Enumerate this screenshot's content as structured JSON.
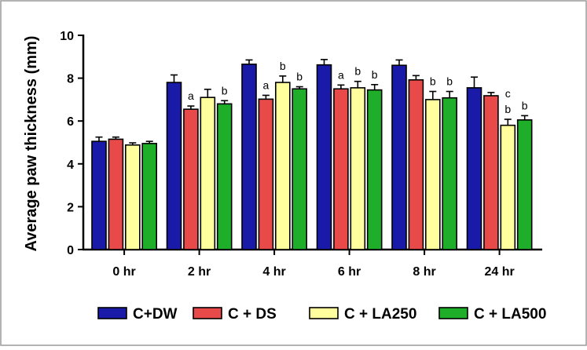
{
  "chart_data": {
    "type": "bar",
    "title": "",
    "xlabel": "",
    "ylabel": "Average paw thickness (mm)",
    "ylim": [
      0,
      10
    ],
    "yticks": [
      0,
      2,
      4,
      6,
      8,
      10
    ],
    "grid": false,
    "legend_position": "bottom",
    "categories": [
      "0 hr",
      "2 hr",
      "4 hr",
      "6 hr",
      "8 hr",
      "24 hr"
    ],
    "series": [
      {
        "name": "C+DW",
        "color": "#1a1aa8",
        "values": [
          5.05,
          7.8,
          8.65,
          8.62,
          8.6,
          7.55
        ],
        "errors": [
          0.2,
          0.35,
          0.2,
          0.25,
          0.25,
          0.5
        ],
        "labels": [
          "",
          "",
          "",
          "",
          "",
          ""
        ]
      },
      {
        "name": "C + DS",
        "color": "#e84a4a",
        "values": [
          5.15,
          6.55,
          7.02,
          7.5,
          7.92,
          7.18
        ],
        "errors": [
          0.1,
          0.15,
          0.18,
          0.18,
          0.2,
          0.15
        ],
        "labels": [
          "",
          "a",
          "a",
          "a",
          "",
          ""
        ]
      },
      {
        "name": "C + LA250",
        "color": "#ffff9e",
        "values": [
          4.88,
          7.1,
          7.8,
          7.55,
          7.0,
          5.8
        ],
        "errors": [
          0.1,
          0.38,
          0.3,
          0.3,
          0.38,
          0.28
        ],
        "labels": [
          "",
          "",
          "b",
          "b",
          "b",
          "b"
        ],
        "extra_labels": [
          "",
          "",
          "",
          "",
          "",
          "c"
        ]
      },
      {
        "name": "C + LA500",
        "color": "#1fae2a",
        "values": [
          4.95,
          6.8,
          7.5,
          7.45,
          7.08,
          6.05
        ],
        "errors": [
          0.1,
          0.15,
          0.1,
          0.25,
          0.3,
          0.2
        ],
        "labels": [
          "",
          "b",
          "b",
          "b",
          "b",
          "b"
        ]
      }
    ]
  }
}
